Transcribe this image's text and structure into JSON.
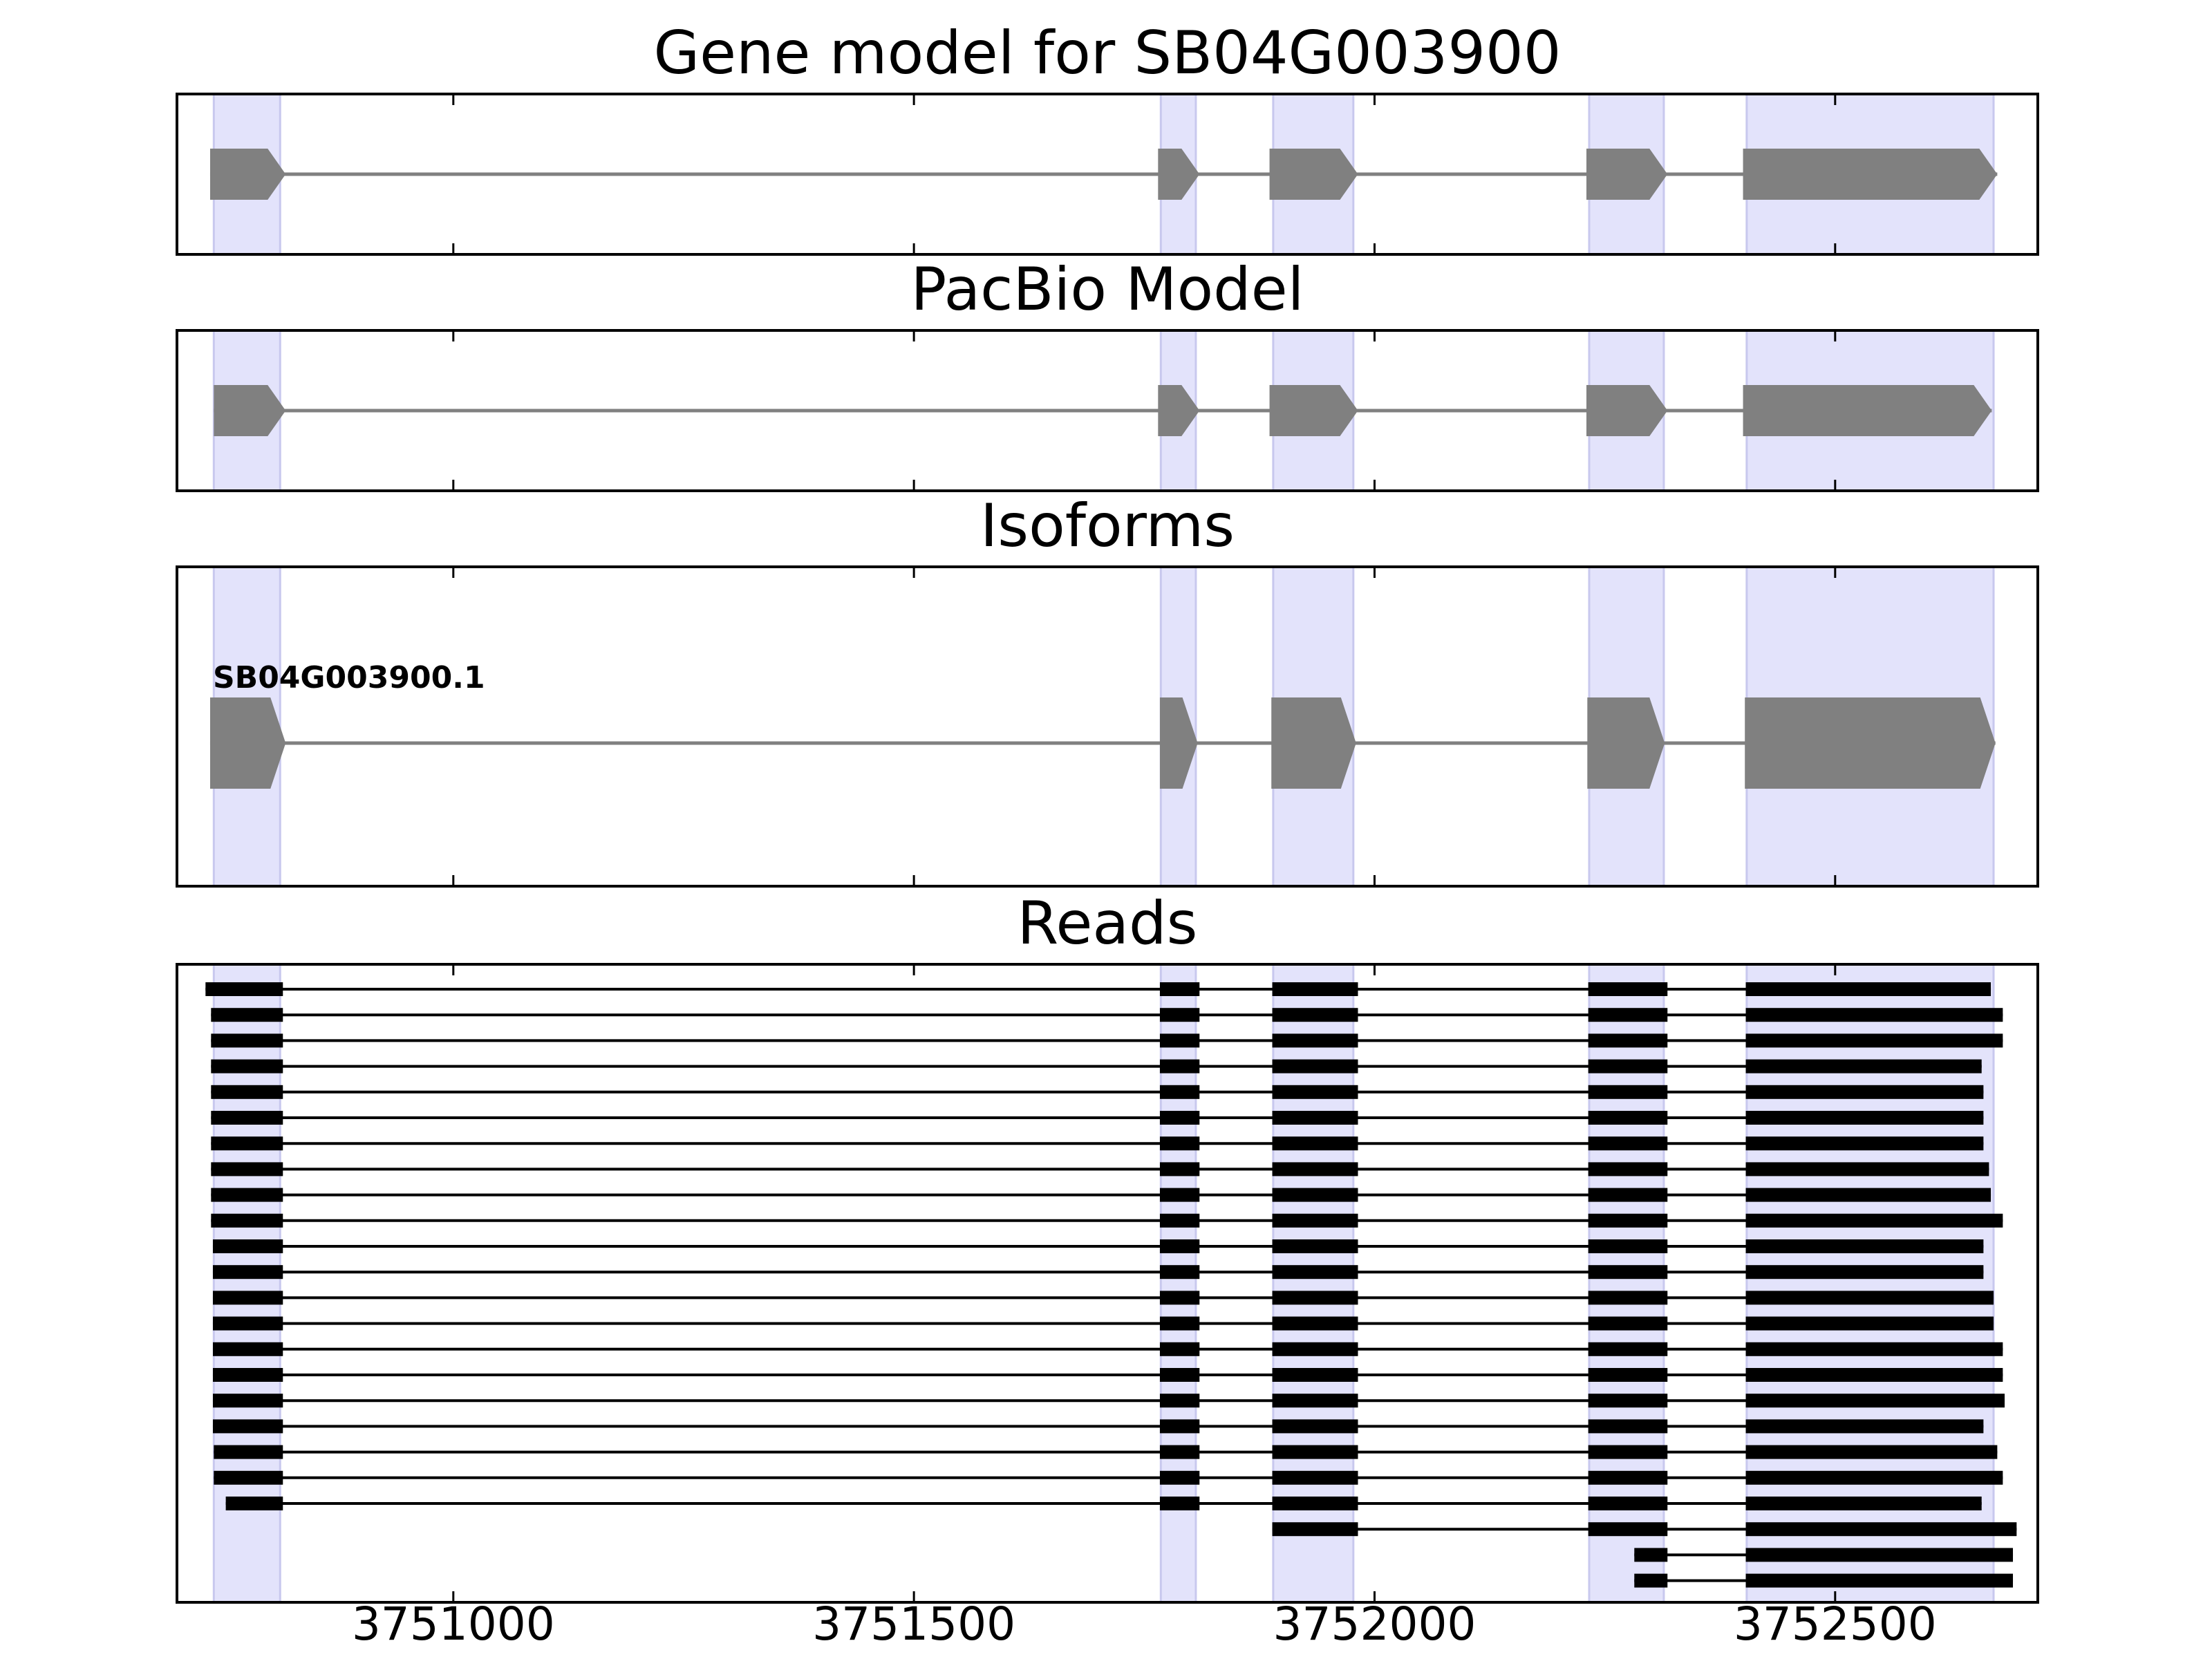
{
  "colors": {
    "background": "#ffffff",
    "exon_highlight": "#e3e3fb",
    "exon_highlight_edge": "#c8c8ee",
    "model_fill": "#808080",
    "intron_line": "#808080",
    "read": "#000000",
    "axis": "#000000"
  },
  "chart_data": {
    "type": "gene-structure",
    "xlim": [
      3750700,
      3752720
    ],
    "x_ticks": [
      3751000,
      3751500,
      3752000,
      3752500
    ],
    "x_tick_labels": [
      "3751000",
      "3751500",
      "3752000",
      "3752500"
    ],
    "highlight_exons": [
      [
        3750740,
        3750812
      ],
      [
        3751768,
        3751806
      ],
      [
        3751890,
        3751977
      ],
      [
        3752233,
        3752314
      ],
      [
        3752404,
        3752672
      ]
    ],
    "panels": [
      {
        "title": "Gene model for SB04G003900",
        "models": [
          {
            "label": "",
            "strand": "+",
            "exons": [
              [
                3750736,
                3750818
              ],
              [
                3751765,
                3751810
              ],
              [
                3751886,
                3751982
              ],
              [
                3752230,
                3752318
              ],
              [
                3752400,
                3752676
              ]
            ]
          }
        ]
      },
      {
        "title": "PacBio Model",
        "models": [
          {
            "label": "",
            "strand": "+",
            "exons": [
              [
                3750740,
                3750818
              ],
              [
                3751765,
                3751810
              ],
              [
                3751886,
                3751982
              ],
              [
                3752230,
                3752318
              ],
              [
                3752400,
                3752670
              ]
            ]
          }
        ]
      },
      {
        "title": "Isoforms",
        "models": [
          {
            "label": "SB04G003900.1",
            "strand": "+",
            "exons": [
              [
                3750736,
                3750818
              ],
              [
                3751767,
                3751808
              ],
              [
                3751888,
                3751980
              ],
              [
                3752231,
                3752315
              ],
              [
                3752402,
                3752674
              ]
            ]
          }
        ]
      },
      {
        "title": "Reads",
        "reads": [
          [
            [
              3750731,
              3750815
            ],
            [
              3751767,
              3751810
            ],
            [
              3751889,
              3751982
            ],
            [
              3752232,
              3752318
            ],
            [
              3752403,
              3752669
            ]
          ],
          [
            [
              3750737,
              3750815
            ],
            [
              3751767,
              3751810
            ],
            [
              3751889,
              3751982
            ],
            [
              3752232,
              3752318
            ],
            [
              3752403,
              3752682
            ]
          ],
          [
            [
              3750737,
              3750815
            ],
            [
              3751767,
              3751810
            ],
            [
              3751889,
              3751982
            ],
            [
              3752232,
              3752318
            ],
            [
              3752403,
              3752682
            ]
          ],
          [
            [
              3750737,
              3750815
            ],
            [
              3751767,
              3751810
            ],
            [
              3751889,
              3751982
            ],
            [
              3752232,
              3752318
            ],
            [
              3752403,
              3752659
            ]
          ],
          [
            [
              3750737,
              3750815
            ],
            [
              3751767,
              3751810
            ],
            [
              3751889,
              3751982
            ],
            [
              3752232,
              3752318
            ],
            [
              3752403,
              3752661
            ]
          ],
          [
            [
              3750737,
              3750815
            ],
            [
              3751767,
              3751810
            ],
            [
              3751889,
              3751982
            ],
            [
              3752232,
              3752318
            ],
            [
              3752403,
              3752661
            ]
          ],
          [
            [
              3750737,
              3750815
            ],
            [
              3751767,
              3751810
            ],
            [
              3751889,
              3751982
            ],
            [
              3752232,
              3752318
            ],
            [
              3752403,
              3752661
            ]
          ],
          [
            [
              3750737,
              3750815
            ],
            [
              3751767,
              3751810
            ],
            [
              3751889,
              3751982
            ],
            [
              3752232,
              3752318
            ],
            [
              3752403,
              3752667
            ]
          ],
          [
            [
              3750737,
              3750815
            ],
            [
              3751767,
              3751810
            ],
            [
              3751889,
              3751982
            ],
            [
              3752232,
              3752318
            ],
            [
              3752403,
              3752669
            ]
          ],
          [
            [
              3750737,
              3750815
            ],
            [
              3751767,
              3751810
            ],
            [
              3751889,
              3751982
            ],
            [
              3752232,
              3752318
            ],
            [
              3752403,
              3752682
            ]
          ],
          [
            [
              3750739,
              3750815
            ],
            [
              3751767,
              3751810
            ],
            [
              3751889,
              3751982
            ],
            [
              3752232,
              3752318
            ],
            [
              3752403,
              3752661
            ]
          ],
          [
            [
              3750739,
              3750815
            ],
            [
              3751767,
              3751810
            ],
            [
              3751889,
              3751982
            ],
            [
              3752232,
              3752318
            ],
            [
              3752403,
              3752661
            ]
          ],
          [
            [
              3750739,
              3750815
            ],
            [
              3751767,
              3751810
            ],
            [
              3751889,
              3751982
            ],
            [
              3752232,
              3752318
            ],
            [
              3752403,
              3752672
            ]
          ],
          [
            [
              3750739,
              3750815
            ],
            [
              3751767,
              3751810
            ],
            [
              3751889,
              3751982
            ],
            [
              3752232,
              3752318
            ],
            [
              3752403,
              3752672
            ]
          ],
          [
            [
              3750739,
              3750815
            ],
            [
              3751767,
              3751810
            ],
            [
              3751889,
              3751982
            ],
            [
              3752232,
              3752318
            ],
            [
              3752403,
              3752682
            ]
          ],
          [
            [
              3750739,
              3750815
            ],
            [
              3751767,
              3751810
            ],
            [
              3751889,
              3751982
            ],
            [
              3752232,
              3752318
            ],
            [
              3752403,
              3752682
            ]
          ],
          [
            [
              3750739,
              3750815
            ],
            [
              3751767,
              3751810
            ],
            [
              3751889,
              3751982
            ],
            [
              3752232,
              3752318
            ],
            [
              3752403,
              3752684
            ]
          ],
          [
            [
              3750739,
              3750815
            ],
            [
              3751767,
              3751810
            ],
            [
              3751889,
              3751982
            ],
            [
              3752232,
              3752318
            ],
            [
              3752403,
              3752661
            ]
          ],
          [
            [
              3750740,
              3750815
            ],
            [
              3751767,
              3751810
            ],
            [
              3751889,
              3751982
            ],
            [
              3752232,
              3752318
            ],
            [
              3752403,
              3752676
            ]
          ],
          [
            [
              3750740,
              3750815
            ],
            [
              3751767,
              3751810
            ],
            [
              3751889,
              3751982
            ],
            [
              3752232,
              3752318
            ],
            [
              3752403,
              3752682
            ]
          ],
          [
            [
              3750753,
              3750815
            ],
            [
              3751767,
              3751810
            ],
            [
              3751889,
              3751982
            ],
            [
              3752232,
              3752318
            ],
            [
              3752403,
              3752659
            ]
          ],
          [
            [
              3751889,
              3751982
            ],
            [
              3752232,
              3752318
            ],
            [
              3752403,
              3752697
            ]
          ],
          [
            [
              3752282,
              3752318
            ],
            [
              3752403,
              3752693
            ]
          ],
          [
            [
              3752282,
              3752318
            ],
            [
              3752403,
              3752693
            ]
          ]
        ]
      }
    ]
  }
}
